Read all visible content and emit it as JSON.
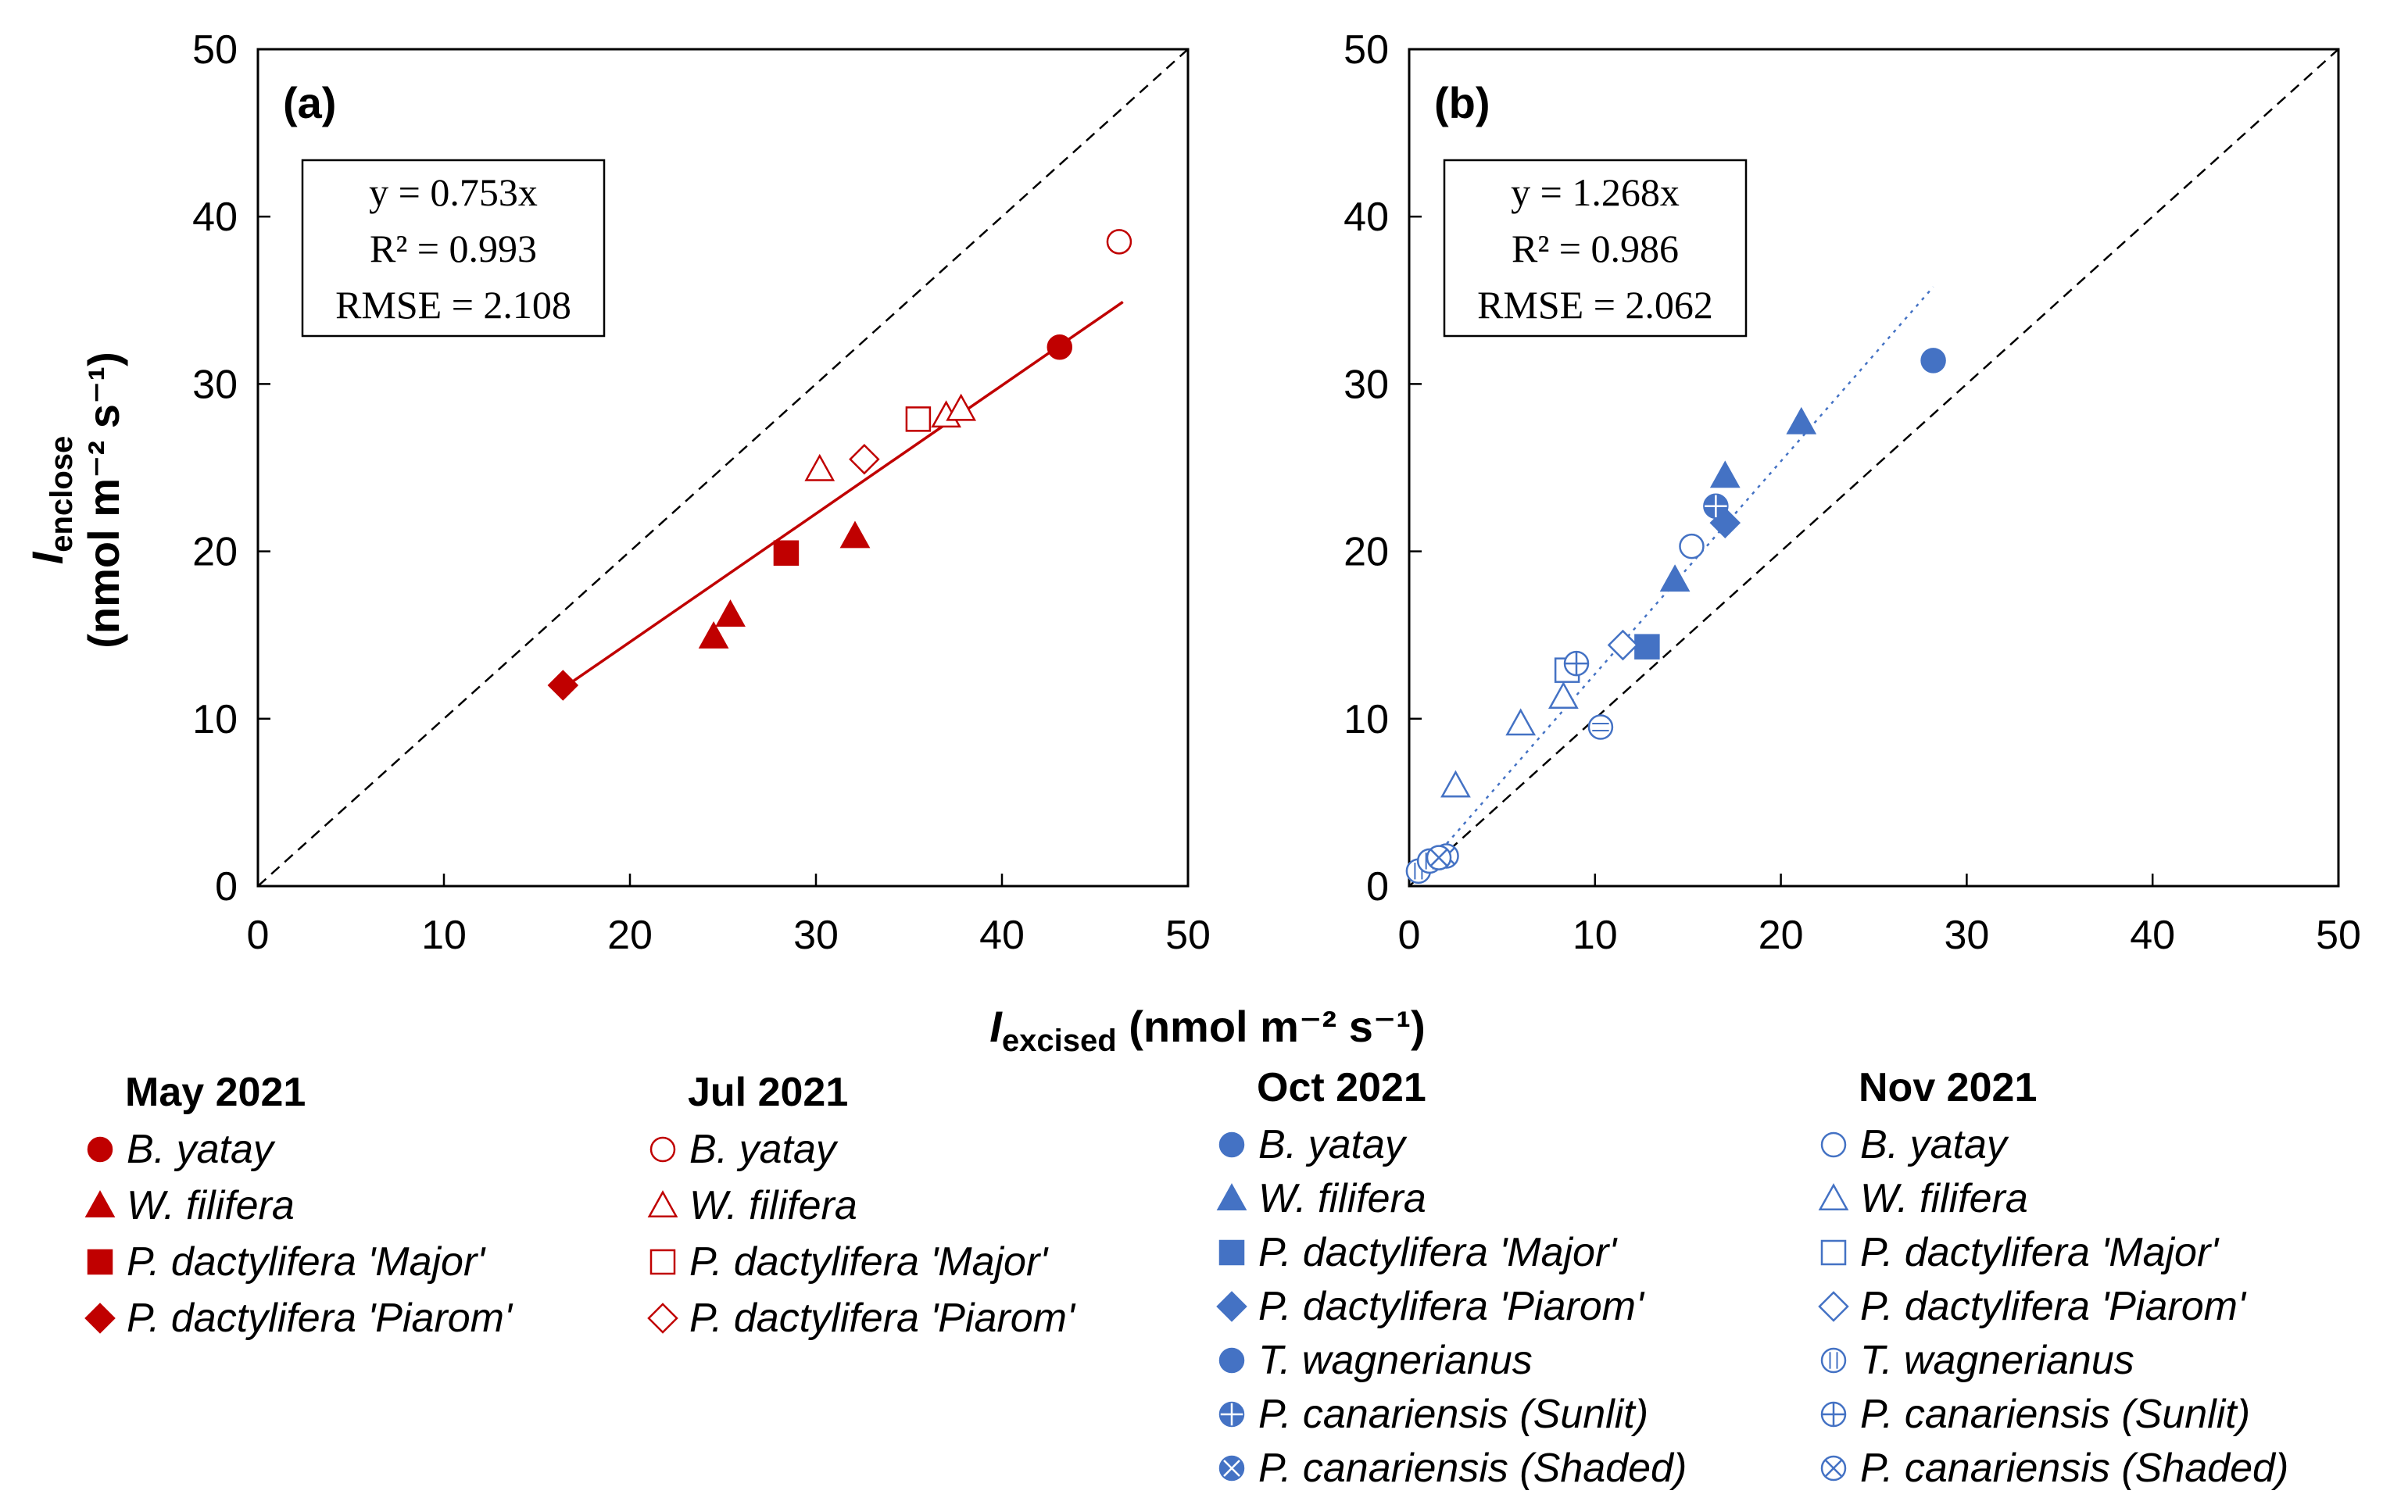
{
  "colors": {
    "red": "#c00000",
    "blue": "#4472c4",
    "axis": "#000000"
  },
  "axis_labels": {
    "y_symbol": "I",
    "y_sub": "enclose",
    "y_units": "(nmol m⁻² s⁻¹)",
    "x_symbol": "I",
    "x_sub": "excised",
    "x_units": "(nmol m⁻² s⁻¹)"
  },
  "chart_data": [
    {
      "panel": "(a)",
      "type": "scatter",
      "xlim": [
        0,
        50
      ],
      "ylim": [
        0,
        50
      ],
      "xticks": [
        0,
        10,
        20,
        30,
        40,
        50
      ],
      "yticks": [
        0,
        10,
        20,
        30,
        40,
        50
      ],
      "equation": [
        "y = 0.753x",
        "R² = 0.993",
        "RMSE = 2.108"
      ],
      "reference_line": "1:1",
      "fit_line": {
        "x": [
          16.5,
          46.5
        ],
        "y": [
          11.9,
          34.9
        ],
        "style": "solid"
      },
      "points": [
        {
          "x": 43.1,
          "y": 32.2,
          "marker": "circle",
          "fill": "filled",
          "group": "May 2021"
        },
        {
          "x": 24.5,
          "y": 14.9,
          "marker": "triangle",
          "fill": "filled",
          "group": "May 2021"
        },
        {
          "x": 25.4,
          "y": 16.2,
          "marker": "triangle",
          "fill": "filled",
          "group": "May 2021"
        },
        {
          "x": 32.1,
          "y": 20.9,
          "marker": "triangle",
          "fill": "filled",
          "group": "May 2021"
        },
        {
          "x": 28.4,
          "y": 19.9,
          "marker": "square",
          "fill": "filled",
          "group": "May 2021"
        },
        {
          "x": 16.4,
          "y": 12.0,
          "marker": "diamond",
          "fill": "filled",
          "group": "May 2021"
        },
        {
          "x": 46.3,
          "y": 38.5,
          "marker": "circle",
          "fill": "open",
          "group": "Jul 2021"
        },
        {
          "x": 30.2,
          "y": 24.9,
          "marker": "triangle",
          "fill": "open",
          "group": "Jul 2021"
        },
        {
          "x": 37.0,
          "y": 28.1,
          "marker": "triangle",
          "fill": "open",
          "group": "Jul 2021"
        },
        {
          "x": 37.8,
          "y": 28.5,
          "marker": "triangle",
          "fill": "open",
          "group": "Jul 2021"
        },
        {
          "x": 35.5,
          "y": 27.9,
          "marker": "square",
          "fill": "open",
          "group": "Jul 2021"
        },
        {
          "x": 32.6,
          "y": 25.5,
          "marker": "diamond",
          "fill": "open",
          "group": "Jul 2021"
        }
      ]
    },
    {
      "panel": "(b)",
      "type": "scatter",
      "xlim": [
        0,
        50
      ],
      "ylim": [
        0,
        50
      ],
      "xticks": [
        0,
        10,
        20,
        30,
        40,
        50
      ],
      "yticks": [
        0,
        10,
        20,
        30,
        40,
        50
      ],
      "equation": [
        "y = 1.268x",
        "R² = 0.986",
        "RMSE = 2.062"
      ],
      "reference_line": "1:1",
      "fit_line": {
        "x": [
          0.5,
          28.2
        ],
        "y": [
          0.6,
          35.8
        ],
        "style": "dotted"
      },
      "points": [
        {
          "x": 28.2,
          "y": 31.4,
          "marker": "circle",
          "fill": "filled",
          "group": "Oct 2021"
        },
        {
          "x": 21.1,
          "y": 27.7,
          "marker": "triangle",
          "fill": "filled",
          "group": "Oct 2021"
        },
        {
          "x": 17.0,
          "y": 24.5,
          "marker": "triangle",
          "fill": "filled",
          "group": "Oct 2021"
        },
        {
          "x": 14.3,
          "y": 18.3,
          "marker": "triangle",
          "fill": "filled",
          "group": "Oct 2021"
        },
        {
          "x": 12.8,
          "y": 14.3,
          "marker": "square",
          "fill": "filled",
          "group": "Oct 2021"
        },
        {
          "x": 17.0,
          "y": 21.7,
          "marker": "diamond",
          "fill": "filled",
          "group": "Oct 2021"
        },
        {
          "x": 10.3,
          "y": 9.5,
          "marker": "circle-hline",
          "fill": "open",
          "group": "Oct 2021"
        },
        {
          "x": 16.5,
          "y": 22.7,
          "marker": "circle-plus",
          "fill": "filled",
          "group": "Oct 2021"
        },
        {
          "x": 2.0,
          "y": 1.8,
          "marker": "circle-x",
          "fill": "open",
          "group": "Oct 2021"
        },
        {
          "x": 15.2,
          "y": 20.3,
          "marker": "circle",
          "fill": "open",
          "group": "Nov 2021"
        },
        {
          "x": 2.5,
          "y": 6.0,
          "marker": "triangle",
          "fill": "open",
          "group": "Nov 2021"
        },
        {
          "x": 6.0,
          "y": 9.7,
          "marker": "triangle",
          "fill": "open",
          "group": "Nov 2021"
        },
        {
          "x": 8.3,
          "y": 11.3,
          "marker": "triangle",
          "fill": "open",
          "group": "Nov 2021"
        },
        {
          "x": 8.5,
          "y": 12.9,
          "marker": "square",
          "fill": "open",
          "group": "Nov 2021"
        },
        {
          "x": 11.5,
          "y": 14.4,
          "marker": "diamond",
          "fill": "open",
          "group": "Nov 2021"
        },
        {
          "x": 0.5,
          "y": 0.9,
          "marker": "circle-vline",
          "fill": "open",
          "group": "Nov 2021"
        },
        {
          "x": 1.1,
          "y": 1.5,
          "marker": "circle-vline",
          "fill": "open",
          "group": "Nov 2021"
        },
        {
          "x": 9.0,
          "y": 13.3,
          "marker": "circle-plus",
          "fill": "open",
          "group": "Nov 2021"
        },
        {
          "x": 1.6,
          "y": 1.7,
          "marker": "circle-x",
          "fill": "open",
          "group": "Nov 2021"
        }
      ]
    }
  ],
  "legend": [
    {
      "title": "May 2021",
      "color": "red",
      "fill": "filled",
      "items": [
        {
          "marker": "circle",
          "label": "B. yatay"
        },
        {
          "marker": "triangle",
          "label": "W. filifera"
        },
        {
          "marker": "square",
          "label": "P. dactylifera 'Major'"
        },
        {
          "marker": "diamond",
          "label": "P. dactylifera 'Piarom'"
        }
      ]
    },
    {
      "title": "Jul 2021",
      "color": "red",
      "fill": "open",
      "items": [
        {
          "marker": "circle",
          "label": "B. yatay"
        },
        {
          "marker": "triangle",
          "label": "W. filifera"
        },
        {
          "marker": "square",
          "label": "P. dactylifera 'Major'"
        },
        {
          "marker": "diamond",
          "label": "P. dactylifera 'Piarom'"
        }
      ]
    },
    {
      "title": "Oct 2021",
      "color": "blue",
      "fill": "filled",
      "items": [
        {
          "marker": "circle",
          "label": "B. yatay"
        },
        {
          "marker": "triangle",
          "label": "W. filifera"
        },
        {
          "marker": "square",
          "label": "P. dactylifera 'Major'"
        },
        {
          "marker": "diamond",
          "label": "P. dactylifera 'Piarom'"
        },
        {
          "marker": "circle-hline",
          "label": "T. wagnerianus"
        },
        {
          "marker": "circle-plus",
          "label": "P. canariensis (Sunlit)"
        },
        {
          "marker": "circle-x",
          "label": "P. canariensis (Shaded)"
        }
      ]
    },
    {
      "title": "Nov 2021",
      "color": "blue",
      "fill": "open",
      "items": [
        {
          "marker": "circle",
          "label": "B. yatay"
        },
        {
          "marker": "triangle",
          "label": "W. filifera"
        },
        {
          "marker": "square",
          "label": "P. dactylifera 'Major'"
        },
        {
          "marker": "diamond",
          "label": "P. dactylifera 'Piarom'"
        },
        {
          "marker": "circle-vline",
          "label": "T. wagnerianus"
        },
        {
          "marker": "circle-plus",
          "label": "P. canariensis (Sunlit)"
        },
        {
          "marker": "circle-x",
          "label": "P. canariensis (Shaded)"
        }
      ]
    }
  ]
}
